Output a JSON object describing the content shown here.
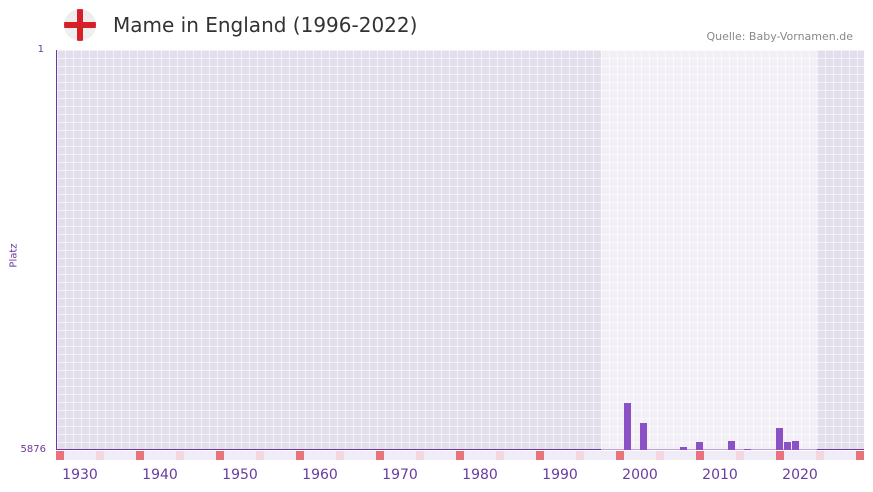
{
  "header": {
    "title": "Mame in England (1996-2022)",
    "source": "Quelle: Baby-Vornamen.de",
    "flag_icon": "england-flag-icon"
  },
  "chart_data": {
    "type": "bar",
    "title": "Mame in England (1996-2022)",
    "xlabel": "",
    "ylabel": "Platz",
    "ylim": [
      5876,
      1
    ],
    "y_ticks": [
      "1",
      "5876"
    ],
    "xlim": [
      1928,
      2028
    ],
    "x_ticks": [
      "1930",
      "1940",
      "1950",
      "1960",
      "1970",
      "1980",
      "1990",
      "2000",
      "2010",
      "2020"
    ],
    "highlight_range": [
      1996,
      2022
    ],
    "x": [
      1999,
      2001,
      2006,
      2008,
      2012,
      2014,
      2018,
      2019,
      2020
    ],
    "values": [
      5186,
      5479,
      5832,
      5759,
      5744,
      5861,
      5553,
      5759,
      5744
    ],
    "bar_color": "#8b52c6",
    "decade_marker_color": "#e8737c",
    "half_decade_marker_color": "#f4d6e0"
  }
}
